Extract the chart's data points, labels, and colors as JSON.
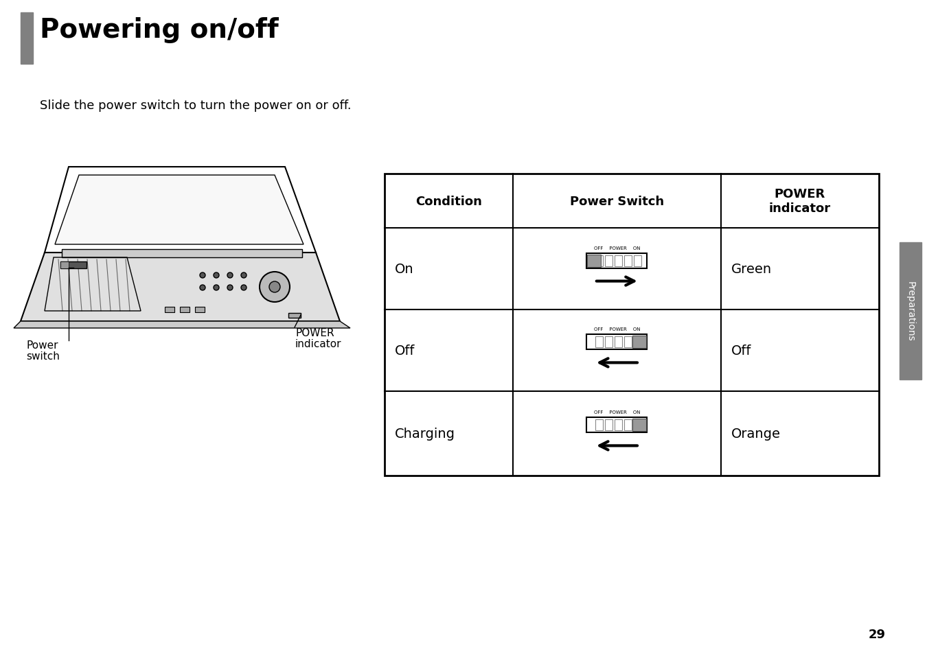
{
  "title": "Powering on/off",
  "title_bar_color": "#808080",
  "subtitle": "Slide the power switch to turn the power on or off.",
  "background_color": "#ffffff",
  "page_number": "29",
  "side_tab_text": "Preparations",
  "side_tab_color": "#808080",
  "table": {
    "col_headers": [
      "Condition",
      "Power Switch",
      "POWER\nindicator"
    ],
    "rows": [
      {
        "condition": "On",
        "indicator": "Green",
        "arrow_dir": "right"
      },
      {
        "condition": "Off",
        "indicator": "Off",
        "arrow_dir": "left"
      },
      {
        "condition": "Charging",
        "indicator": "Orange",
        "arrow_dir": "left"
      }
    ]
  }
}
